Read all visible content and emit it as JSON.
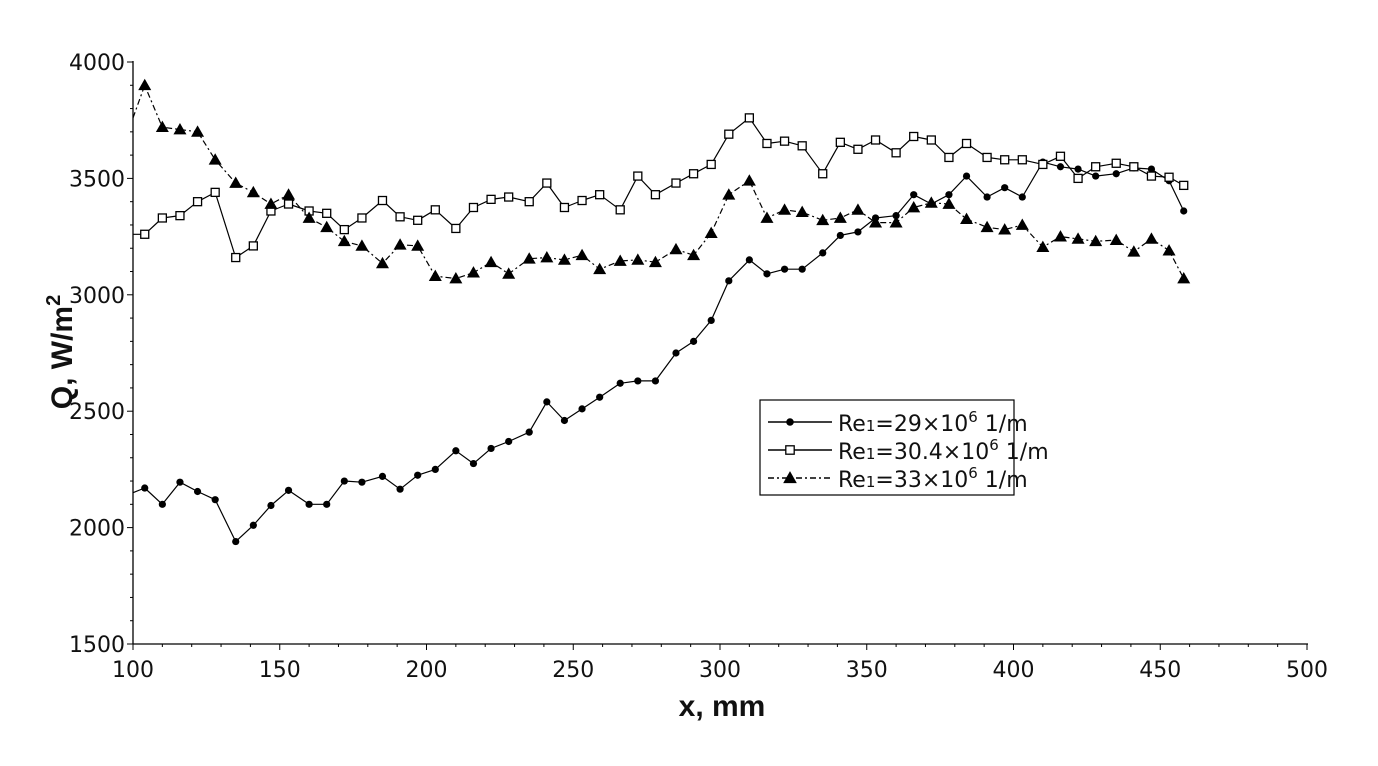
{
  "chart_data": {
    "type": "line",
    "xlabel": "x, mm",
    "ylabel": "Q, W/m",
    "ylabel_sup": "2",
    "xlim": [
      100,
      500
    ],
    "ylim": [
      1500,
      4000
    ],
    "xticks": [
      "100",
      "150",
      "200",
      "250",
      "300",
      "350",
      "400",
      "450",
      "500"
    ],
    "yticks": [
      "1500",
      "2000",
      "2500",
      "3000",
      "3500",
      "4000"
    ],
    "grid": false,
    "legend_position": "center-right",
    "series": [
      {
        "name": "Re1=29×10^6 1/m",
        "legend": {
          "base": "Re",
          "sub": "1",
          "mid": "=29×10",
          "sup": "6",
          "tail": " 1/m"
        },
        "marker": "filled-circle",
        "dash": "solid",
        "x": [
          100,
          104,
          110,
          116,
          122,
          128,
          135,
          141,
          147,
          153,
          160,
          166,
          172,
          178,
          185,
          191,
          197,
          203,
          210,
          216,
          222,
          228,
          235,
          241,
          247,
          253,
          259,
          266,
          272,
          278,
          285,
          291,
          297,
          303,
          310,
          316,
          322,
          328,
          335,
          341,
          347,
          353,
          360,
          366,
          372,
          378,
          384,
          391,
          397,
          403,
          410,
          416,
          422,
          428,
          435,
          441,
          447,
          453,
          458
        ],
        "y": [
          2150,
          2170,
          2100,
          2195,
          2155,
          2120,
          1940,
          2010,
          2095,
          2160,
          2100,
          2100,
          2200,
          2195,
          2220,
          2165,
          2225,
          2250,
          2330,
          2275,
          2340,
          2370,
          2410,
          2540,
          2460,
          2510,
          2560,
          2620,
          2630,
          2630,
          2750,
          2800,
          2890,
          3060,
          3150,
          3090,
          3110,
          3110,
          3180,
          3255,
          3270,
          3330,
          3340,
          3430,
          3390,
          3430,
          3510,
          3420,
          3460,
          3420,
          3570,
          3550,
          3540,
          3510,
          3520,
          3545,
          3540,
          3490,
          3360
        ]
      },
      {
        "name": "Re1=30.4×10^6 1/m",
        "legend": {
          "base": "Re",
          "sub": "1",
          "mid": "=30.4×10",
          "sup": "6",
          "tail": " 1/m"
        },
        "marker": "open-square",
        "dash": "solid",
        "x": [
          100,
          104,
          110,
          116,
          122,
          128,
          135,
          141,
          147,
          153,
          160,
          166,
          172,
          178,
          185,
          191,
          197,
          203,
          210,
          216,
          222,
          228,
          235,
          241,
          247,
          253,
          259,
          266,
          272,
          278,
          285,
          291,
          297,
          303,
          310,
          316,
          322,
          328,
          335,
          341,
          347,
          353,
          360,
          366,
          372,
          378,
          384,
          391,
          397,
          403,
          410,
          416,
          422,
          428,
          435,
          441,
          447,
          453,
          458
        ],
        "y": [
          3260,
          3260,
          3330,
          3340,
          3400,
          3440,
          3160,
          3210,
          3360,
          3390,
          3360,
          3350,
          3280,
          3330,
          3405,
          3335,
          3320,
          3365,
          3285,
          3375,
          3410,
          3420,
          3400,
          3480,
          3375,
          3405,
          3430,
          3365,
          3510,
          3430,
          3480,
          3520,
          3560,
          3690,
          3760,
          3650,
          3660,
          3640,
          3520,
          3655,
          3625,
          3665,
          3610,
          3680,
          3665,
          3590,
          3650,
          3590,
          3580,
          3580,
          3560,
          3595,
          3500,
          3550,
          3565,
          3550,
          3510,
          3505,
          3470
        ]
      },
      {
        "name": "Re1=33×10^6 1/m",
        "legend": {
          "base": "Re",
          "sub": "1",
          "mid": "=33×10",
          "sup": "6",
          "tail": " 1/m"
        },
        "marker": "filled-triangle",
        "dash": "dash-dot",
        "x": [
          100,
          104,
          110,
          116,
          122,
          128,
          135,
          141,
          147,
          153,
          160,
          166,
          172,
          178,
          185,
          191,
          197,
          203,
          210,
          216,
          222,
          228,
          235,
          241,
          247,
          253,
          259,
          266,
          272,
          278,
          285,
          291,
          297,
          303,
          310,
          316,
          322,
          328,
          335,
          341,
          347,
          353,
          360,
          366,
          372,
          378,
          384,
          391,
          397,
          403,
          410,
          416,
          422,
          428,
          435,
          441,
          447,
          453,
          458
        ],
        "y": [
          3760,
          3900,
          3720,
          3710,
          3700,
          3580,
          3480,
          3440,
          3390,
          3430,
          3330,
          3290,
          3230,
          3210,
          3135,
          3215,
          3210,
          3080,
          3070,
          3095,
          3140,
          3090,
          3155,
          3160,
          3150,
          3170,
          3110,
          3145,
          3150,
          3140,
          3195,
          3170,
          3265,
          3430,
          3490,
          3330,
          3365,
          3355,
          3320,
          3330,
          3365,
          3310,
          3310,
          3375,
          3395,
          3390,
          3325,
          3290,
          3280,
          3300,
          3205,
          3250,
          3240,
          3230,
          3235,
          3185,
          3240,
          3190,
          3070
        ]
      }
    ]
  },
  "colors": {
    "line": "#000000",
    "axis": "#000000",
    "background": "#ffffff"
  }
}
